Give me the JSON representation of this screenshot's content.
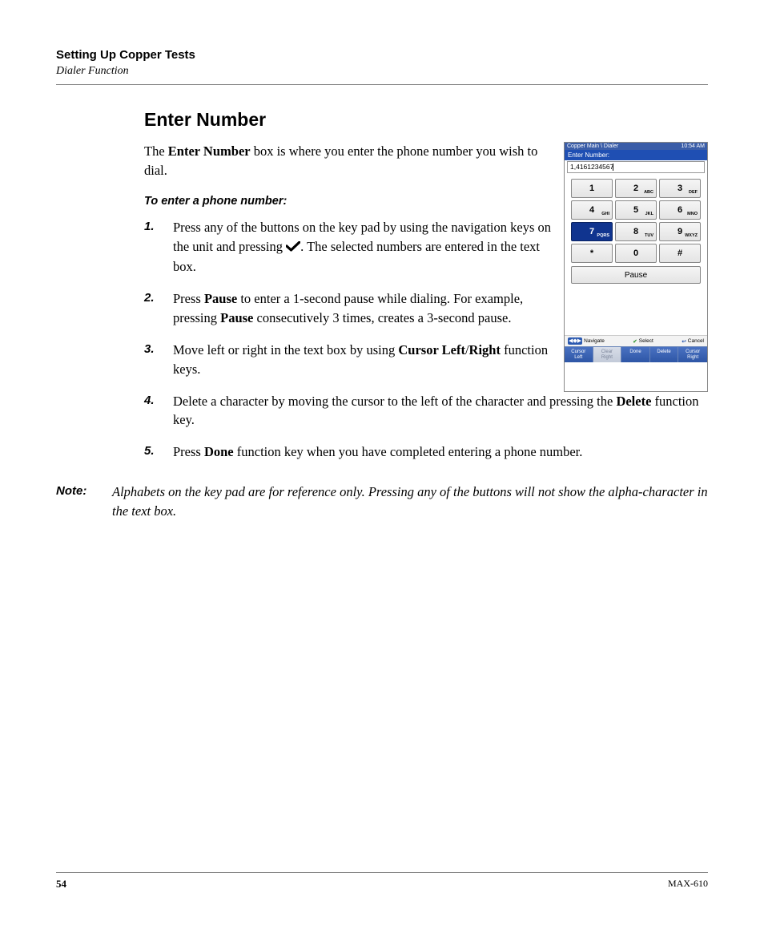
{
  "header": {
    "title": "Setting Up Copper Tests",
    "subtitle": "Dialer Function"
  },
  "section_title": "Enter Number",
  "intro": {
    "pre": "The ",
    "bold": "Enter Number",
    "post": " box is where you enter the phone number you wish to dial."
  },
  "subhead": "To enter a phone number:",
  "steps": {
    "s1a": "Press any of the buttons on the key pad by using the navigation keys on the unit and pressing ",
    "s1b": ". The selected numbers are entered in the text box.",
    "s2a": "Press ",
    "s2b": "Pause",
    "s2c": " to enter a 1-second pause while dialing. For example, pressing ",
    "s2d": "Pause",
    "s2e": " consecutively 3 times, creates a 3-second pause.",
    "s3a": "Move left or right in the text box by using ",
    "s3b": "Cursor Left",
    "s3c": "/",
    "s3d": "Right",
    "s3e": " function keys.",
    "s4a": "Delete a character by moving the cursor to the left of the character and pressing the ",
    "s4b": "Delete",
    "s4c": " function key.",
    "s5a": "Press ",
    "s5b": "Done",
    "s5c": " function key when you have completed entering a phone number."
  },
  "note": {
    "label": "Note:",
    "text": "Alphabets on the key pad are for reference only. Pressing any of the buttons will not show the alpha-character in the text box."
  },
  "footer": {
    "page": "54",
    "model": "MAX-610"
  },
  "device": {
    "titlebar_left": "Copper Main \\ Dialer",
    "titlebar_right": "10:54 AM",
    "label": "Enter Number:",
    "value": "1,4161234567",
    "keys": [
      {
        "num": "1",
        "sub": ""
      },
      {
        "num": "2",
        "sub": "ABC"
      },
      {
        "num": "3",
        "sub": "DEF"
      },
      {
        "num": "4",
        "sub": "GHI"
      },
      {
        "num": "5",
        "sub": "JKL"
      },
      {
        "num": "6",
        "sub": "MNO"
      },
      {
        "num": "7",
        "sub": "PQRS"
      },
      {
        "num": "8",
        "sub": "TUV"
      },
      {
        "num": "9",
        "sub": "WXYZ"
      },
      {
        "num": "*",
        "sub": ""
      },
      {
        "num": "0",
        "sub": ""
      },
      {
        "num": "#",
        "sub": ""
      }
    ],
    "selected_index": 6,
    "pause": "Pause",
    "nav": {
      "navigate": "Navigate",
      "select": "Select",
      "cancel": "Cancel"
    },
    "softkeys": [
      "Cursor Left",
      "Clear Right",
      "Done",
      "Delete",
      "Cursor Right"
    ],
    "soft_disabled_index": 1,
    "colors": {
      "titlebar_bg": "#3a5da8",
      "label_bg": "#1f4fb3",
      "selected_key_bg": "#10348f",
      "soft_bg": "#2e56a6",
      "check_green": "#3a9a3a"
    }
  }
}
